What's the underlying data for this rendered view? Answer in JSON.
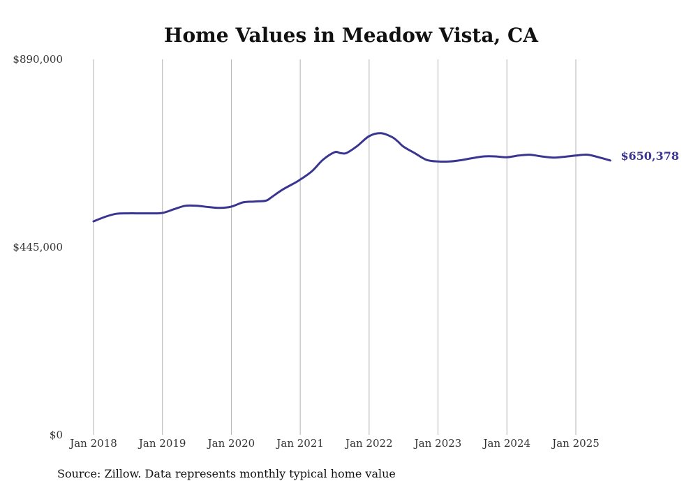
{
  "chart_data": {
    "type": "line",
    "title": "Home Values in Meadow Vista, CA",
    "xlabel": "",
    "ylabel": "",
    "ylim": [
      0,
      890000
    ],
    "y_ticks": [
      "$0",
      "$445,000",
      "$890,000"
    ],
    "y_tick_values": [
      0,
      445000,
      890000
    ],
    "x_ticks": [
      "Jan 2018",
      "Jan 2019",
      "Jan 2020",
      "Jan 2021",
      "Jan 2022",
      "Jan 2023",
      "Jan 2024",
      "Jan 2025"
    ],
    "x_tick_values": [
      2018,
      2019,
      2020,
      2021,
      2022,
      2023,
      2024,
      2025
    ],
    "xlim": [
      2018,
      2025.5
    ],
    "grid": "vertical",
    "line_color": "#3a3591",
    "series": [
      {
        "x": [
          2018.0,
          2018.17,
          2018.33,
          2018.5,
          2018.67,
          2018.83,
          2019.0,
          2019.17,
          2019.33,
          2019.5,
          2019.67,
          2019.83,
          2020.0,
          2020.17,
          2020.33,
          2020.5,
          2020.58,
          2020.75,
          2020.92,
          2021.0,
          2021.17,
          2021.33,
          2021.5,
          2021.58,
          2021.67,
          2021.83,
          2022.0,
          2022.17,
          2022.33,
          2022.42,
          2022.5,
          2022.67,
          2022.83,
          2023.0,
          2023.17,
          2023.33,
          2023.5,
          2023.67,
          2023.83,
          2024.0,
          2024.17,
          2024.33,
          2024.5,
          2024.67,
          2024.83,
          2025.0,
          2025.17,
          2025.33,
          2025.5
        ],
        "values": [
          506000,
          517000,
          524000,
          525000,
          525000,
          525000,
          526000,
          535000,
          543000,
          543000,
          540000,
          538000,
          541000,
          551000,
          553000,
          555000,
          563000,
          582000,
          597000,
          605000,
          625000,
          652000,
          670000,
          668000,
          668000,
          685000,
          708000,
          715000,
          706000,
          695000,
          683000,
          667000,
          652000,
          648000,
          648000,
          651000,
          656000,
          660000,
          660000,
          658000,
          662000,
          664000,
          660000,
          657000,
          659000,
          662000,
          664000,
          658000,
          650378
        ]
      }
    ],
    "annotations": [
      {
        "text": "$650,378",
        "color": "#3a3591"
      }
    ]
  },
  "footer": {
    "source": "Source: Zillow. Data represents monthly typical home value"
  }
}
